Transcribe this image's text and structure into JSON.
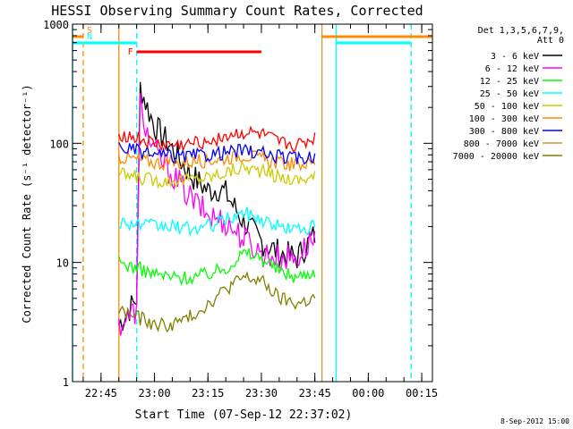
{
  "chart_data": {
    "type": "line",
    "title": "HESSI Observing Summary Count Rates, Corrected",
    "xlabel": "Start Time (07-Sep-12 22:37:02)",
    "ylabel": "Corrected Count Rate (s⁻¹ detector⁻¹)",
    "y_scale": "log",
    "ylim": [
      1,
      1000
    ],
    "xlim": [
      "22:37",
      "00:18"
    ],
    "x_ticks": [
      "22:45",
      "23:00",
      "23:15",
      "23:30",
      "23:45",
      "00:00",
      "00:15"
    ],
    "y_ticks": [
      "1",
      "10",
      "100",
      "1000"
    ],
    "legend_header": [
      "Det 1,3,5,6,7,9,",
      "Att 0"
    ],
    "legend_position": "right",
    "footer": "8-Sep-2012 15:00",
    "series": [
      {
        "name": "3 - 6 keV",
        "color": "#000000",
        "x": [
          "22:50",
          "22:55",
          "22:56",
          "22:58",
          "23:00",
          "23:05",
          "23:10",
          "23:15",
          "23:18",
          "23:20",
          "23:25",
          "23:30",
          "23:35",
          "23:40",
          "23:45"
        ],
        "y": [
          3,
          5,
          300,
          200,
          140,
          90,
          55,
          40,
          42,
          38,
          22,
          15,
          12,
          11,
          17
        ]
      },
      {
        "name": "6 - 12 keV",
        "color": "#ff00ff",
        "x": [
          "22:50",
          "22:55",
          "22:56",
          "22:58",
          "23:00",
          "23:05",
          "23:10",
          "23:15",
          "23:20",
          "23:25",
          "23:30",
          "23:35",
          "23:40",
          "23:45"
        ],
        "y": [
          3,
          4,
          220,
          120,
          85,
          55,
          35,
          25,
          22,
          16,
          12,
          11,
          11,
          17
        ]
      },
      {
        "name": "12 - 25 keV",
        "color": "#00ff00",
        "x": [
          "22:50",
          "22:55",
          "23:00",
          "23:05",
          "23:10",
          "23:15",
          "23:20",
          "23:25",
          "23:30",
          "23:35",
          "23:40",
          "23:45"
        ],
        "y": [
          10,
          9,
          8,
          7.5,
          7.5,
          8,
          9,
          12,
          11,
          8.5,
          7.5,
          8.5
        ]
      },
      {
        "name": "25 - 50 keV",
        "color": "#00ffff",
        "x": [
          "22:50",
          "22:55",
          "23:00",
          "23:05",
          "23:10",
          "23:15",
          "23:20",
          "23:25",
          "23:30",
          "23:35",
          "23:40",
          "23:45"
        ],
        "y": [
          22,
          21,
          20,
          20,
          19,
          20,
          23,
          26,
          23,
          20,
          19,
          20
        ]
      },
      {
        "name": "50 - 100 keV",
        "color": "#cccc00",
        "x": [
          "22:50",
          "22:55",
          "23:00",
          "23:05",
          "23:10",
          "23:15",
          "23:20",
          "23:25",
          "23:30",
          "23:35",
          "23:40",
          "23:45"
        ],
        "y": [
          55,
          52,
          49,
          49,
          50,
          52,
          57,
          63,
          58,
          52,
          49,
          53
        ]
      },
      {
        "name": "100 - 300 keV",
        "color": "#ff8c00",
        "x": [
          "22:50",
          "22:55",
          "23:00",
          "23:05",
          "23:10",
          "23:15",
          "23:20",
          "23:25",
          "23:30",
          "23:35",
          "23:40",
          "23:45"
        ],
        "y": [
          77,
          73,
          69,
          68,
          70,
          72,
          75,
          80,
          74,
          68,
          66,
          70
        ]
      },
      {
        "name": "300 - 800 keV",
        "color": "#0000ff",
        "x": [
          "22:50",
          "22:55",
          "23:00",
          "23:05",
          "23:10",
          "23:15",
          "23:20",
          "23:25",
          "23:30",
          "23:35",
          "23:40",
          "23:45"
        ],
        "y": [
          93,
          86,
          80,
          77,
          78,
          80,
          84,
          87,
          82,
          77,
          74,
          78
        ]
      },
      {
        "name": "800 - 7000 keV",
        "color": "#cc9933",
        "x": [],
        "y": []
      },
      {
        "name": "7000 - 20000 keV",
        "color": "#808000",
        "x": [
          "22:50",
          "22:55",
          "23:00",
          "23:05",
          "23:10",
          "23:15",
          "23:20",
          "23:25",
          "23:30",
          "23:35",
          "23:40",
          "23:45"
        ],
        "y": [
          4,
          3.5,
          3,
          3,
          3.5,
          4.5,
          6,
          7.5,
          7,
          5,
          4.5,
          5
        ]
      },
      {
        "name": "",
        "color": "#ff0000",
        "x": [
          "22:50",
          "22:55",
          "23:00",
          "23:05",
          "23:10",
          "23:15",
          "23:20",
          "23:25",
          "23:30",
          "23:35",
          "23:40",
          "23:45"
        ],
        "y": [
          120,
          110,
          98,
          95,
          98,
          105,
          115,
          122,
          118,
          100,
          95,
          110
        ]
      }
    ],
    "flag_bars": [
      {
        "label": "S",
        "color": "#ff8c00",
        "segments": [
          [
            "22:37",
            "22:40"
          ],
          [
            "23:47",
            "00:18"
          ]
        ]
      },
      {
        "label": "N",
        "color": "#00ffff",
        "segments": [
          [
            "22:37",
            "22:55"
          ],
          [
            "23:51",
            "00:12"
          ]
        ]
      },
      {
        "label": "F",
        "color": "#ff0000",
        "segments": [
          [
            "22:55",
            "23:30"
          ]
        ]
      }
    ],
    "vertical_lines": [
      {
        "t": "22:37",
        "color": "#00ffff",
        "style": "solid"
      },
      {
        "t": "22:40",
        "color": "#ff8c00",
        "style": "dashed"
      },
      {
        "t": "22:50",
        "color": "#ff8c00",
        "style": "solid"
      },
      {
        "t": "22:55",
        "color": "#00ffff",
        "style": "dashed"
      },
      {
        "t": "23:47",
        "color": "#cc9933",
        "style": "solid"
      },
      {
        "t": "23:51",
        "color": "#00ffff",
        "style": "solid"
      },
      {
        "t": "00:12",
        "color": "#ff8c00",
        "style": "dashed"
      },
      {
        "t": "00:12",
        "color": "#00ffff",
        "style": "dashed"
      }
    ]
  }
}
